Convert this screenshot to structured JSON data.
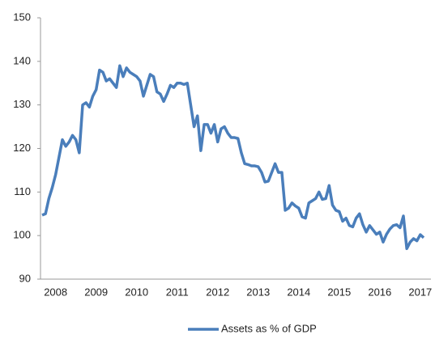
{
  "chart_data": {
    "type": "line",
    "categories": [
      null,
      null,
      null,
      null,
      "2008",
      null,
      null,
      null,
      null,
      null,
      null,
      null,
      null,
      null,
      null,
      null,
      "2009",
      null,
      null,
      null,
      null,
      null,
      null,
      null,
      null,
      null,
      null,
      null,
      "2010",
      null,
      null,
      null,
      null,
      null,
      null,
      null,
      null,
      null,
      null,
      null,
      "2011",
      null,
      null,
      null,
      null,
      null,
      null,
      null,
      null,
      null,
      null,
      null,
      "2012",
      null,
      null,
      null,
      null,
      null,
      null,
      null,
      null,
      null,
      null,
      null,
      "2013",
      null,
      null,
      null,
      null,
      null,
      null,
      null,
      null,
      null,
      null,
      null,
      "2014",
      null,
      null,
      null,
      null,
      null,
      null,
      null,
      null,
      null,
      null,
      null,
      "2015",
      null,
      null,
      null,
      null,
      null,
      null,
      null,
      null,
      null,
      null,
      null,
      "2016",
      null,
      null,
      null,
      null,
      null,
      null,
      null,
      null,
      null,
      null,
      null,
      "2017",
      null
    ],
    "series": [
      {
        "name": "Assets as % of GDP",
        "color": "#4a7ebb",
        "values": [
          104.7,
          105,
          108.5,
          111,
          114,
          118,
          122,
          120.5,
          121.5,
          123,
          122,
          119,
          130,
          130.5,
          129.5,
          132,
          133.5,
          138,
          137.5,
          135.5,
          136,
          135,
          134,
          139,
          136.5,
          138.5,
          137.5,
          137,
          136.5,
          135.5,
          132,
          134.5,
          137,
          136.5,
          133,
          132.5,
          130.8,
          132.5,
          134.5,
          134,
          135,
          135,
          134.7,
          135,
          130,
          125,
          127.5,
          119.5,
          125.5,
          125.5,
          123.5,
          125.5,
          121.5,
          124.5,
          125,
          123.5,
          122.5,
          122.5,
          122.3,
          119,
          116.5,
          116.3,
          116,
          116,
          115.8,
          114.5,
          112.3,
          112.5,
          114.5,
          116.5,
          114.5,
          114.5,
          105.8,
          106.3,
          107.5,
          106.8,
          106.3,
          104.3,
          104,
          107.5,
          108,
          108.5,
          110,
          108.3,
          108.5,
          111.5,
          107,
          105.8,
          105.5,
          103.3,
          104,
          102.3,
          102,
          104,
          105,
          102.5,
          100.8,
          102.3,
          101.3,
          100.3,
          100.8,
          98.5,
          100.3,
          101.5,
          102.3,
          102.5,
          101.8,
          104.5,
          97,
          98.5,
          99.3,
          98.8,
          100.2,
          99.5
        ]
      }
    ],
    "ylim": [
      90,
      150
    ],
    "yticks": [
      90,
      100,
      110,
      120,
      130,
      140,
      150
    ],
    "legend": "bottom"
  }
}
